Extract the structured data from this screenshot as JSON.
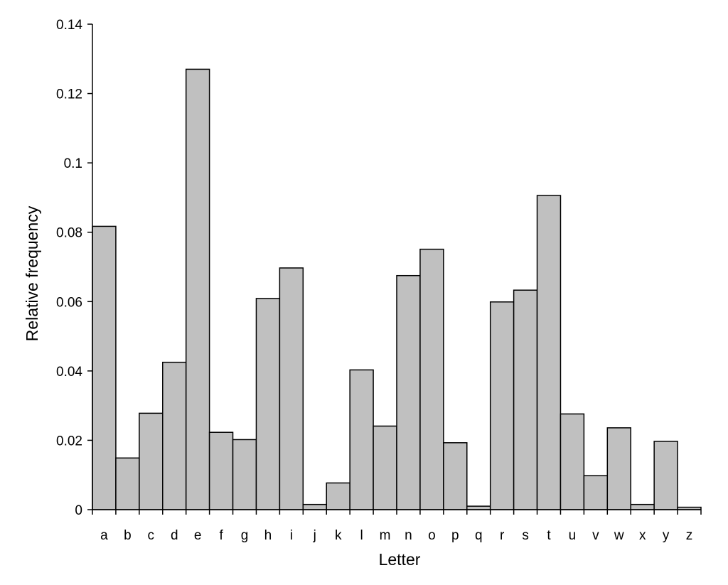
{
  "chart_data": {
    "type": "bar",
    "title": "",
    "xlabel": "Letter",
    "ylabel": "Relative frequency",
    "ylim": [
      0,
      0.14
    ],
    "yticks": [
      "0",
      "0.02",
      "0.04",
      "0.06",
      "0.08",
      "0.1",
      "0.12",
      "0.14"
    ],
    "grid": false,
    "legend": "none",
    "categories": [
      "a",
      "b",
      "c",
      "d",
      "e",
      "f",
      "g",
      "h",
      "i",
      "j",
      "k",
      "l",
      "m",
      "n",
      "o",
      "p",
      "q",
      "r",
      "s",
      "t",
      "u",
      "v",
      "w",
      "x",
      "y",
      "z"
    ],
    "values": [
      0.0817,
      0.0149,
      0.0278,
      0.0425,
      0.127,
      0.0223,
      0.0202,
      0.0609,
      0.0697,
      0.0015,
      0.0077,
      0.0403,
      0.0241,
      0.0675,
      0.0751,
      0.0193,
      0.001,
      0.0599,
      0.0633,
      0.0906,
      0.0276,
      0.0098,
      0.0236,
      0.0015,
      0.0197,
      0.0007
    ],
    "colors": {
      "bar_fill": "#c0c0c0",
      "bar_stroke": "#000000",
      "axis": "#000000"
    }
  }
}
